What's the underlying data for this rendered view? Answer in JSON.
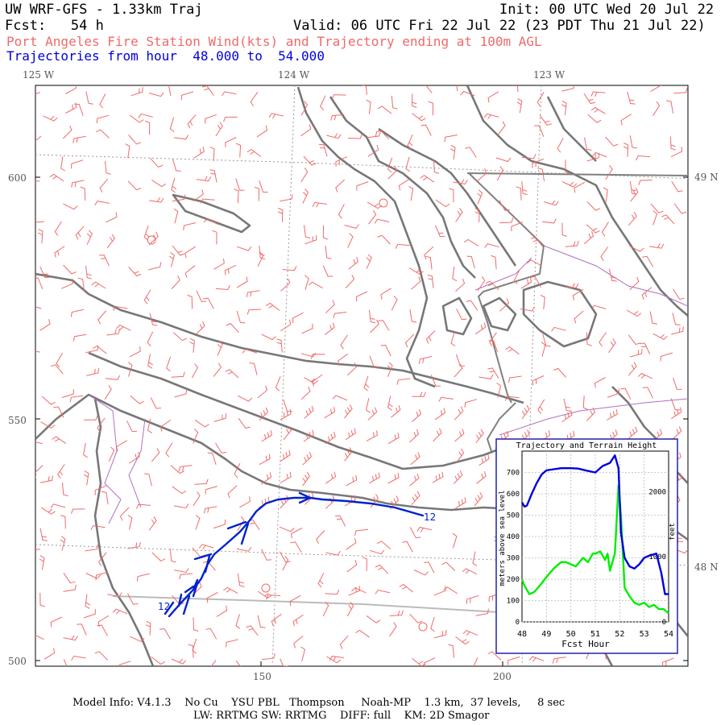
{
  "header": {
    "title": "UW WRF-GFS - 1.33km Traj",
    "init": "Init: 00 UTC Wed 20 Jul 22",
    "fcst": "Fcst:   54 h",
    "valid": "Valid: 06 UTC Fri 22 Jul 22 (23 PDT Thu 21 Jul 22)",
    "subtitle": "Port Angeles Fire Station Wind(kts) and Trajectory ending at 100m AGL",
    "traj_range": "Trajectories from hour  48.000 to  54.000"
  },
  "map": {
    "lon_labels": [
      "125 W",
      "124 W",
      "123 W"
    ],
    "lat_labels": [
      "49 N",
      "48 N"
    ],
    "y_ticks": [
      "600",
      "550",
      "500"
    ],
    "x_ticks": [
      "150",
      "200"
    ],
    "traj_labels": [
      "12",
      "12"
    ],
    "colors": {
      "coast": "#777777",
      "barb": "#f06a6a",
      "trajectory": "#0022cc",
      "border": "#b070c0"
    }
  },
  "inset": {
    "title": "Trajectory and Terrain Height",
    "xlabel": "Fcst Hour",
    "ylabel": "meters above sea level",
    "y2label": "feet",
    "x_ticks": [
      "48",
      "49",
      "50",
      "51",
      "52",
      "53",
      "54"
    ],
    "y_ticks": [
      "0",
      "100",
      "200",
      "300",
      "400",
      "500",
      "600",
      "700"
    ],
    "y2_ticks": [
      "0",
      "1000",
      "2000"
    ],
    "series": [
      {
        "name": "trajectory",
        "color": "#0000dd",
        "x": [
          48.0,
          48.1,
          48.2,
          48.4,
          48.6,
          48.8,
          49.0,
          49.3,
          49.6,
          50.0,
          50.3,
          50.6,
          51.0,
          51.3,
          51.6,
          51.8,
          51.95,
          52.05,
          52.2,
          52.4,
          52.6,
          52.8,
          53.0,
          53.2,
          53.5,
          53.7,
          53.85,
          54.0
        ],
        "y": [
          560,
          540,
          545,
          600,
          650,
          690,
          710,
          715,
          720,
          720,
          718,
          710,
          700,
          730,
          745,
          780,
          720,
          420,
          300,
          260,
          250,
          270,
          300,
          310,
          320,
          230,
          130,
          130
        ]
      },
      {
        "name": "terrain",
        "color": "#00ee00",
        "x": [
          48.0,
          48.1,
          48.3,
          48.5,
          48.8,
          49.0,
          49.3,
          49.6,
          49.8,
          50.0,
          50.2,
          50.5,
          50.7,
          50.9,
          51.0,
          51.2,
          51.4,
          51.5,
          51.6,
          51.8,
          51.95,
          52.05,
          52.2,
          52.4,
          52.6,
          52.8,
          53.0,
          53.2,
          53.4,
          53.6,
          53.8,
          54.0
        ],
        "y": [
          200,
          170,
          130,
          140,
          180,
          210,
          250,
          280,
          280,
          270,
          260,
          300,
          280,
          320,
          320,
          330,
          290,
          320,
          240,
          320,
          640,
          500,
          160,
          120,
          90,
          80,
          90,
          70,
          80,
          60,
          60,
          40
        ]
      }
    ]
  },
  "footer": {
    "line1": "Model Info: V4.1.3    No Cu    YSU PBL   Thompson     Noah-MP    1.3 km,  37 levels,     8 sec",
    "line2": "LW: RRTMG SW: RRTMG    DIFF: full    KM: 2D Smagor"
  }
}
